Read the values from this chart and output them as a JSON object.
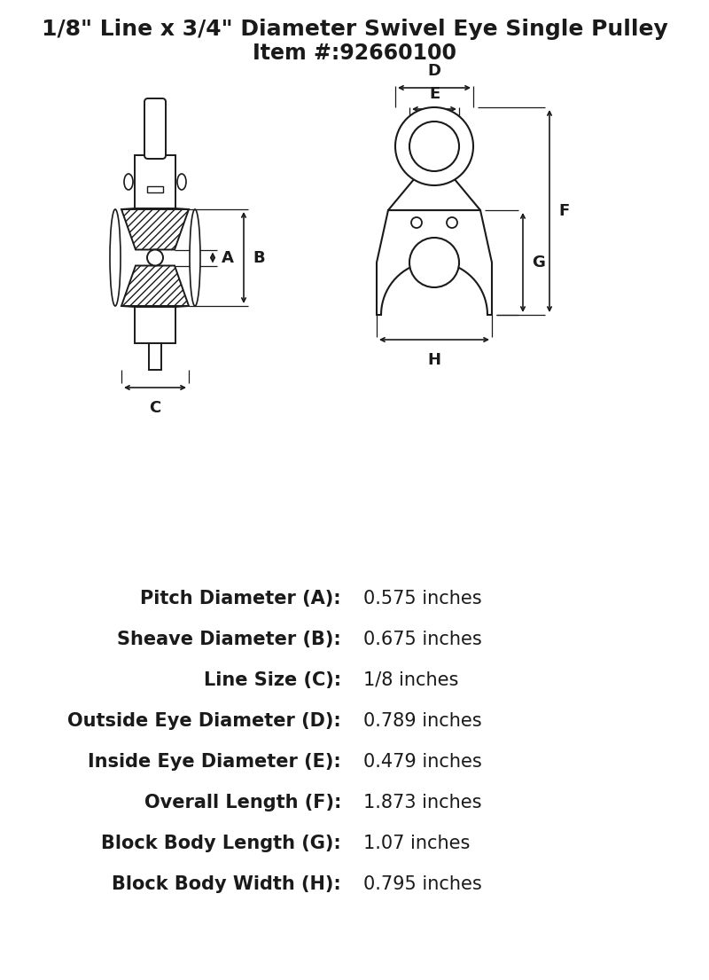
{
  "title_line1": "1/8\" Line x 3/4\" Diameter Swivel Eye Single Pulley",
  "title_line2": "Item #:92660100",
  "bg_color": "#ffffff",
  "line_color": "#1a1a1a",
  "specs": [
    {
      "label": "Pitch Diameter (A):",
      "value": "0.575 inches"
    },
    {
      "label": "Sheave Diameter (B):",
      "value": "0.675 inches"
    },
    {
      "label": "Line Size (C):",
      "value": "1/8 inches"
    },
    {
      "label": "Outside Eye Diameter (D):",
      "value": "0.789 inches"
    },
    {
      "label": "Inside Eye Diameter (E):",
      "value": "0.479 inches"
    },
    {
      "label": "Overall Length (F):",
      "value": "1.873 inches"
    },
    {
      "label": "Block Body Length (G):",
      "value": "1.07 inches"
    },
    {
      "label": "Block Body Width (H):",
      "value": "0.795 inches"
    }
  ],
  "title_fontsize": 18,
  "item_fontsize": 17,
  "spec_label_fontsize": 15,
  "spec_value_fontsize": 15,
  "dim_label_fontsize": 13
}
